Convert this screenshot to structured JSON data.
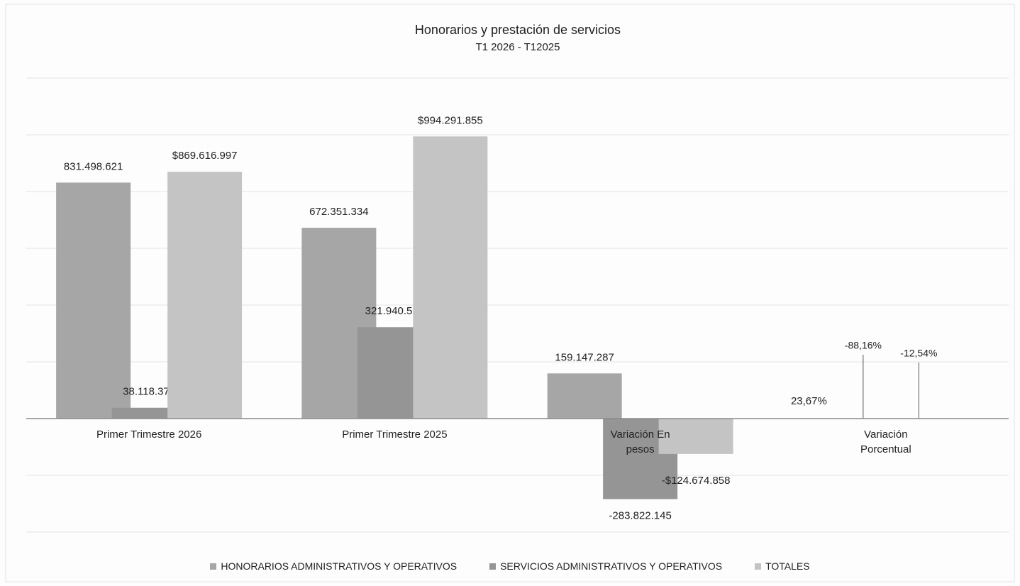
{
  "chart_data": {
    "type": "bar",
    "title": "Honorarios y prestación de servicios",
    "subtitle": "T1 2026 - T12025",
    "categories": [
      "Primer Trimestre 2026",
      "Primer Trimestre 2025",
      "Variación En pesos",
      "Variación Porcentual"
    ],
    "series": [
      {
        "name": "HONORARIOS ADMINISTRATIVOS Y OPERATIVOS",
        "color": "#a6a6a6",
        "values": [
          831498621,
          672351334,
          159147287,
          23.67
        ],
        "value_labels": [
          "831.498.621",
          "672.351.334",
          "159.147.287",
          "23,67%"
        ]
      },
      {
        "name": "SERVICIOS ADMINISTRATIVOS Y OPERATIVOS",
        "color": "#959595",
        "values": [
          38118376,
          321940521,
          -283822145,
          -88.16
        ],
        "value_labels": [
          "38.118.376",
          "321.940.521",
          "-283.822.145",
          "-88,16%"
        ]
      },
      {
        "name": "TOTALES",
        "color": "#c4c4c4",
        "values": [
          869616997,
          994291855,
          -124674858,
          -12.54
        ],
        "value_labels": [
          "$869.616.997",
          "$994.291.855",
          "-$124.674.858",
          "-12,54%"
        ]
      }
    ],
    "ylim": [
      -400000000,
      1200000000
    ],
    "yticks": [
      -400000000,
      -200000000,
      0,
      200000000,
      400000000,
      600000000,
      800000000,
      1000000000,
      1200000000
    ],
    "grid": true,
    "legend": "bottom"
  }
}
